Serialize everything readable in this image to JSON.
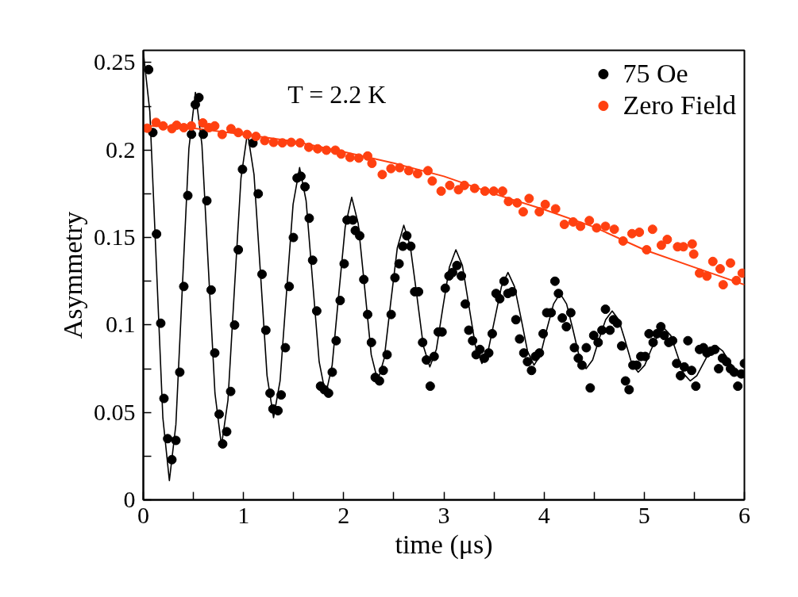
{
  "chart_data": {
    "type": "scatter",
    "xlabel": "time (μs)",
    "ylabel": "Asymmetry",
    "annotations": [
      "T = 2.2 K"
    ],
    "xlim": [
      0,
      6
    ],
    "ylim": [
      0,
      0.257
    ],
    "xticks": [
      0,
      {
        "value": 0.5,
        "label": null
      },
      1,
      {
        "value": 1.5,
        "label": null
      },
      2,
      {
        "value": 2.5,
        "label": null
      },
      3,
      {
        "value": 3.5,
        "label": null
      },
      4,
      {
        "value": 4.5,
        "label": null
      },
      5,
      {
        "value": 5.5,
        "label": null
      },
      6
    ],
    "yticks": [
      0,
      {
        "value": 0.025,
        "label": null
      },
      0.05,
      {
        "value": 0.075,
        "label": null
      },
      0.1,
      {
        "value": 0.125,
        "label": null
      },
      0.15,
      {
        "value": 0.175,
        "label": null
      },
      0.2,
      {
        "value": 0.225,
        "label": null
      },
      0.25
    ],
    "grid": false,
    "legend": "top right",
    "marker": "circle",
    "series": [
      {
        "type": "line",
        "color": "#000000",
        "line_style": "solid",
        "marker": "none",
        "x": [
          0,
          0.065,
          0.13,
          0.195,
          0.26,
          0.325,
          0.39,
          0.455,
          0.52,
          0.585,
          0.65,
          0.715,
          0.78,
          0.845,
          0.91,
          0.975,
          1.04,
          1.105,
          1.17,
          1.235,
          1.3,
          1.365,
          1.43,
          1.495,
          1.56,
          1.625,
          1.69,
          1.755,
          1.82,
          1.885,
          1.95,
          2.015,
          2.08,
          2.145,
          2.21,
          2.275,
          2.34,
          2.405,
          2.47,
          2.535,
          2.6,
          2.665,
          2.73,
          2.795,
          2.86,
          2.925,
          2.99,
          3.055,
          3.12,
          3.185,
          3.25,
          3.315,
          3.38,
          3.445,
          3.51,
          3.575,
          3.64,
          3.705,
          3.77,
          3.835,
          3.9,
          3.965,
          4.03,
          4.095,
          4.16,
          4.225,
          4.29,
          4.355,
          4.42,
          4.485,
          4.55,
          4.615,
          4.68,
          4.745,
          4.81,
          4.875,
          4.94,
          5.005,
          5.07,
          5.135,
          5.2,
          5.265,
          5.33,
          5.395,
          5.46,
          5.525,
          5.59,
          5.655,
          5.72,
          5.785,
          5.85,
          5.915,
          5.98,
          6.0
        ],
        "values": [
          0.256,
          0.222,
          0.135,
          0.047,
          0.011,
          0.043,
          0.122,
          0.201,
          0.233,
          0.203,
          0.132,
          0.061,
          0.031,
          0.057,
          0.121,
          0.184,
          0.21,
          0.186,
          0.129,
          0.071,
          0.047,
          0.068,
          0.119,
          0.169,
          0.19,
          0.171,
          0.125,
          0.079,
          0.06,
          0.077,
          0.117,
          0.156,
          0.173,
          0.158,
          0.121,
          0.083,
          0.068,
          0.081,
          0.113,
          0.144,
          0.157,
          0.145,
          0.117,
          0.088,
          0.076,
          0.086,
          0.11,
          0.133,
          0.143,
          0.134,
          0.111,
          0.088,
          0.078,
          0.086,
          0.104,
          0.122,
          0.13,
          0.122,
          0.104,
          0.085,
          0.077,
          0.083,
          0.098,
          0.112,
          0.118,
          0.112,
          0.097,
          0.081,
          0.075,
          0.08,
          0.092,
          0.103,
          0.108,
          0.103,
          0.091,
          0.078,
          0.073,
          0.077,
          0.086,
          0.094,
          0.098,
          0.094,
          0.083,
          0.072,
          0.068,
          0.071,
          0.078,
          0.085,
          0.088,
          0.085,
          0.079,
          0.073,
          0.07,
          0.07
        ]
      },
      {
        "type": "line",
        "color": "#ff4010",
        "line_style": "solid",
        "marker": "none",
        "x": [
          0,
          0.5,
          1,
          1.5,
          2,
          2.5,
          3,
          3.5,
          4,
          4.5,
          5,
          5.5,
          6
        ],
        "values": [
          0.214,
          0.2125,
          0.209,
          0.205,
          0.199,
          0.1925,
          0.185,
          0.175,
          0.166,
          0.156,
          0.143,
          0.133,
          0.123
        ]
      },
      {
        "name": "75 Oe",
        "color": "#000000",
        "x": [
          0.053,
          0.095,
          0.132,
          0.174,
          0.206,
          0.243,
          0.285,
          0.325,
          0.364,
          0.404,
          0.444,
          0.481,
          0.519,
          0.555,
          0.598,
          0.634,
          0.677,
          0.713,
          0.757,
          0.792,
          0.832,
          0.872,
          0.911,
          0.948,
          0.99,
          1.094,
          1.147,
          1.185,
          1.223,
          1.265,
          1.294,
          1.344,
          1.376,
          1.418,
          1.456,
          1.498,
          1.535,
          1.573,
          1.614,
          1.656,
          1.69,
          1.731,
          1.769,
          1.807,
          1.849,
          1.886,
          1.925,
          1.965,
          2.005,
          2.034,
          2.092,
          2.116,
          2.16,
          2.201,
          2.239,
          2.277,
          2.315,
          2.357,
          2.395,
          2.433,
          2.474,
          2.512,
          2.553,
          2.591,
          2.63,
          2.67,
          2.709,
          2.747,
          2.788,
          2.826,
          2.864,
          2.903,
          2.944,
          2.982,
          3.014,
          3.051,
          3.087,
          3.13,
          3.175,
          3.214,
          3.249,
          3.287,
          3.322,
          3.36,
          3.404,
          3.448,
          3.483,
          3.521,
          3.558,
          3.601,
          3.639,
          3.683,
          3.719,
          3.756,
          3.798,
          3.835,
          3.875,
          3.914,
          3.954,
          3.991,
          4.027,
          4.071,
          4.109,
          4.144,
          4.182,
          4.223,
          4.267,
          4.303,
          4.342,
          4.379,
          4.422,
          4.461,
          4.496,
          4.54,
          4.578,
          4.613,
          4.658,
          4.693,
          4.731,
          4.775,
          4.813,
          4.849,
          4.887,
          4.925,
          4.966,
          5.01,
          5.048,
          5.089,
          5.127,
          5.166,
          5.2,
          5.245,
          5.283,
          5.324,
          5.362,
          5.4,
          5.436,
          5.473,
          5.515,
          5.552,
          5.591,
          5.626,
          5.664,
          5.705,
          5.743,
          5.781,
          5.822,
          5.861,
          5.898,
          5.934,
          5.969,
          6.0
        ],
        "values": [
          0.246,
          0.21,
          0.152,
          0.101,
          0.058,
          0.035,
          0.023,
          0.034,
          0.073,
          0.122,
          0.174,
          0.209,
          0.226,
          0.23,
          0.209,
          0.171,
          0.12,
          0.084,
          0.049,
          0.032,
          0.039,
          0.062,
          0.1,
          0.143,
          0.189,
          0.204,
          0.175,
          0.129,
          0.097,
          0.061,
          0.052,
          0.051,
          0.06,
          0.087,
          0.122,
          0.15,
          0.184,
          0.185,
          0.179,
          0.161,
          0.137,
          0.108,
          0.065,
          0.063,
          0.061,
          0.073,
          0.091,
          0.114,
          0.135,
          0.16,
          0.16,
          0.154,
          0.151,
          0.126,
          0.106,
          0.09,
          0.07,
          0.068,
          0.074,
          0.083,
          0.106,
          0.127,
          0.135,
          0.145,
          0.151,
          0.145,
          0.119,
          0.119,
          0.09,
          0.08,
          0.065,
          0.082,
          0.096,
          0.096,
          0.121,
          0.128,
          0.13,
          0.134,
          0.128,
          0.112,
          0.097,
          0.091,
          0.083,
          0.086,
          0.081,
          0.084,
          0.095,
          0.118,
          0.115,
          0.125,
          0.118,
          0.119,
          0.103,
          0.092,
          0.084,
          0.079,
          0.074,
          0.082,
          0.084,
          0.095,
          0.107,
          0.107,
          0.125,
          0.118,
          0.104,
          0.099,
          0.107,
          0.087,
          0.081,
          0.077,
          0.087,
          0.064,
          0.094,
          0.09,
          0.097,
          0.109,
          0.097,
          0.103,
          0.101,
          0.088,
          0.068,
          0.063,
          0.077,
          0.077,
          0.082,
          0.082,
          0.095,
          0.09,
          0.095,
          0.099,
          0.094,
          0.09,
          0.091,
          0.078,
          0.071,
          0.076,
          0.091,
          0.074,
          0.065,
          0.086,
          0.087,
          0.084,
          0.085,
          0.086,
          0.075,
          0.081,
          0.079,
          0.075,
          0.073,
          0.065,
          0.072,
          0.078
        ]
      },
      {
        "name": "Zero Field",
        "color": "#ff4010",
        "x": [
          0.038,
          0.127,
          0.198,
          0.285,
          0.333,
          0.404,
          0.479,
          0.594,
          0.655,
          0.713,
          0.787,
          0.875,
          0.948,
          1.036,
          1.124,
          1.212,
          1.3,
          1.388,
          1.476,
          1.564,
          1.652,
          1.74,
          1.828,
          1.917,
          1.975,
          2.063,
          2.151,
          2.239,
          2.282,
          2.385,
          2.472,
          2.559,
          2.65,
          2.738,
          2.841,
          2.884,
          2.973,
          3.059,
          3.146,
          3.205,
          3.307,
          3.41,
          3.498,
          3.586,
          3.645,
          3.732,
          3.792,
          3.851,
          3.953,
          4.012,
          4.115,
          4.203,
          4.291,
          4.364,
          4.452,
          4.525,
          4.613,
          4.701,
          4.789,
          4.878,
          4.951,
          5.024,
          5.083,
          5.171,
          5.23,
          5.333,
          5.391,
          5.479,
          5.494,
          5.552,
          5.626,
          5.685,
          5.758,
          5.788,
          5.861,
          5.919,
          5.978
        ],
        "values": [
          0.2125,
          0.2158,
          0.2138,
          0.2122,
          0.2142,
          0.2128,
          0.2138,
          0.2155,
          0.2128,
          0.2138,
          0.2089,
          0.2122,
          0.21,
          0.2089,
          0.2078,
          0.2054,
          0.2044,
          0.2041,
          0.2044,
          0.2041,
          0.2016,
          0.2007,
          0.1999,
          0.1999,
          0.1977,
          0.1958,
          0.1954,
          0.1966,
          0.1924,
          0.186,
          0.1894,
          0.1899,
          0.1882,
          0.1865,
          0.1882,
          0.1823,
          0.1765,
          0.1798,
          0.1773,
          0.1798,
          0.1781,
          0.1765,
          0.1765,
          0.1765,
          0.1706,
          0.1698,
          0.1647,
          0.1723,
          0.1647,
          0.1689,
          0.1664,
          0.1575,
          0.1589,
          0.1564,
          0.1597,
          0.1555,
          0.1564,
          0.1547,
          0.148,
          0.1522,
          0.153,
          0.143,
          0.1547,
          0.1456,
          0.1489,
          0.1447,
          0.1447,
          0.1463,
          0.1405,
          0.1296,
          0.1279,
          0.1363,
          0.1321,
          0.123,
          0.1354,
          0.1254,
          0.1296
        ]
      }
    ]
  }
}
